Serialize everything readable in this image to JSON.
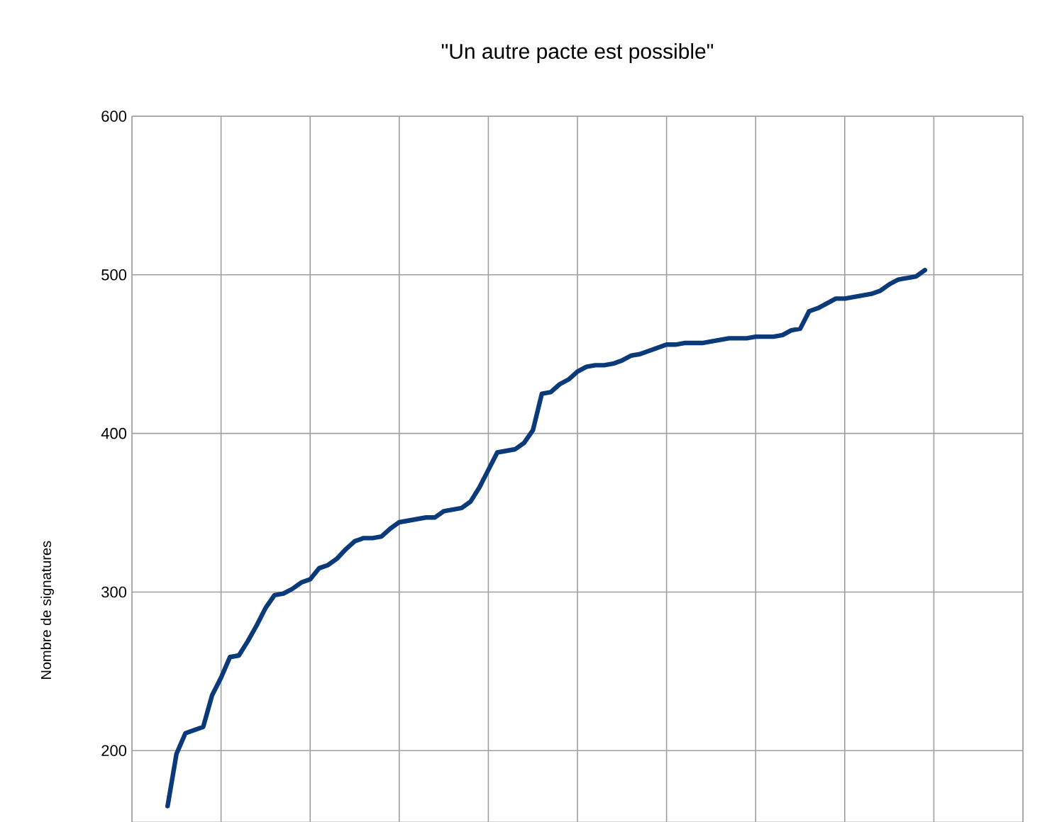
{
  "chart_data": {
    "type": "line",
    "title": "\"Un autre pacte est possible\"",
    "ylabel": "Nombre de signatures",
    "categories": [
      null,
      null,
      null,
      null,
      null,
      null,
      null,
      null,
      null,
      null,
      null,
      null,
      null,
      null,
      null,
      null,
      null,
      null,
      null,
      null,
      null,
      null,
      null,
      null,
      null,
      null,
      null,
      null,
      null,
      null,
      null,
      null,
      null,
      null,
      null,
      null,
      null,
      null,
      null,
      null,
      null,
      null,
      null,
      null,
      null,
      null,
      null,
      null,
      null,
      null,
      null,
      null,
      null,
      null,
      null,
      null,
      null,
      null,
      null,
      null,
      null,
      null,
      null,
      null,
      null,
      null,
      null,
      null,
      null,
      null,
      null,
      null,
      null,
      null,
      null,
      null,
      null,
      null,
      null,
      null,
      null,
      null,
      null,
      null,
      null,
      null,
      null,
      null,
      null,
      null,
      null,
      null,
      null,
      null,
      null,
      null,
      null,
      null,
      null,
      null,
      null
    ],
    "ylim": [
      155,
      600
    ],
    "yticks": [
      200,
      300,
      400,
      500,
      600
    ],
    "grid": true,
    "marker": "none",
    "line_style": "solid",
    "series": [
      {
        "color": "#0a3a7a",
        "values": [
          null,
          null,
          null,
          null,
          165,
          198,
          211,
          213,
          215,
          235,
          246,
          259,
          260,
          269,
          279,
          290,
          298,
          299,
          302,
          306,
          308,
          315,
          317,
          321,
          327,
          332,
          334,
          334,
          335,
          340,
          344,
          345,
          346,
          347,
          347,
          351,
          352,
          353,
          357,
          366,
          377,
          388,
          389,
          390,
          394,
          402,
          425,
          426,
          431,
          434,
          439,
          442,
          443,
          443,
          444,
          446,
          449,
          450,
          452,
          454,
          456,
          456,
          457,
          457,
          457,
          458,
          459,
          460,
          460,
          460,
          461,
          461,
          461,
          462,
          465,
          466,
          477,
          479,
          482,
          485,
          485,
          486,
          487,
          488,
          490,
          494,
          497,
          498,
          499,
          503,
          null,
          null,
          null,
          null,
          null,
          null,
          null,
          null,
          null,
          null,
          null
        ]
      }
    ]
  }
}
